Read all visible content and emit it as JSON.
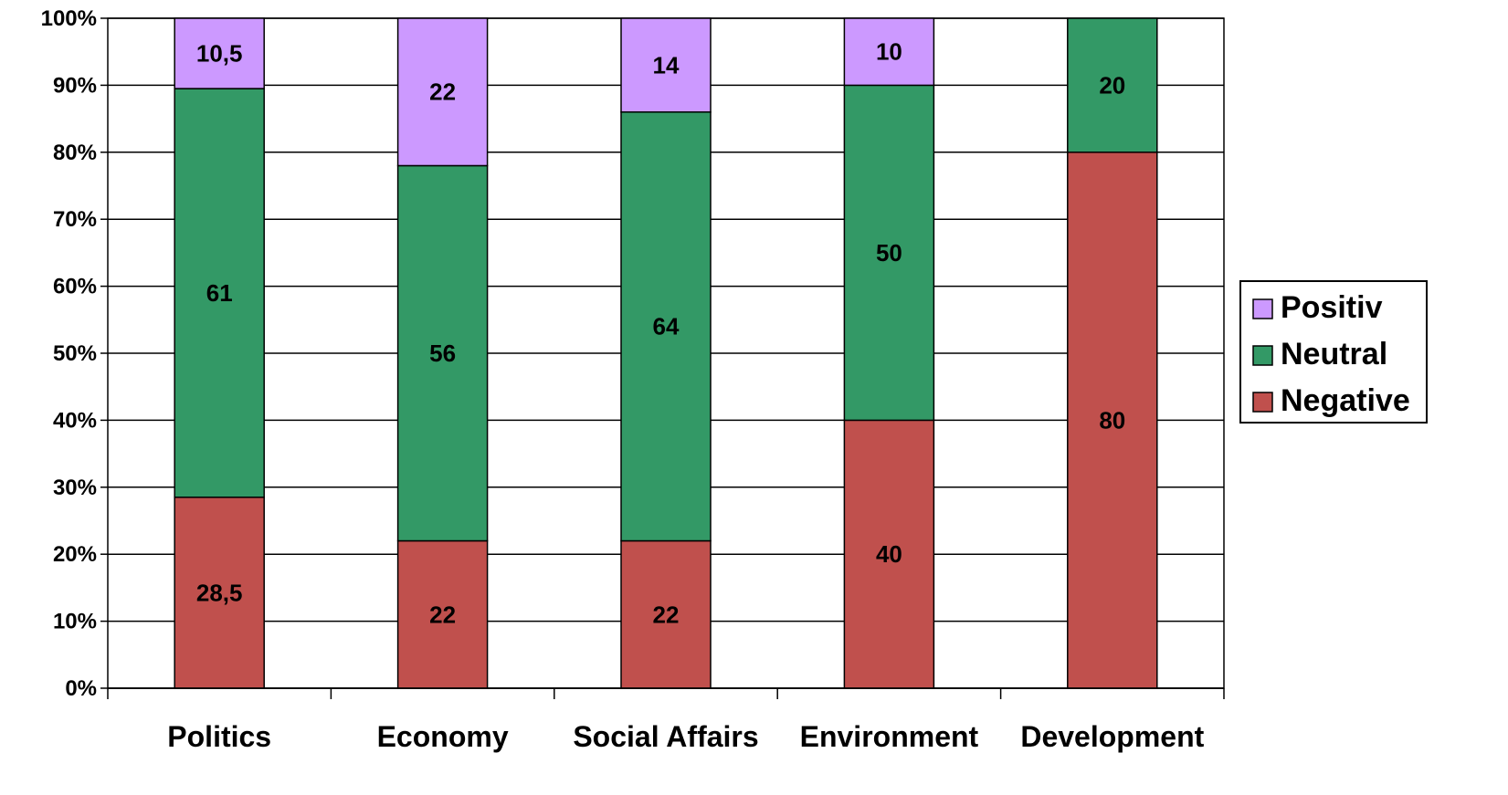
{
  "chart_data": {
    "type": "bar",
    "stacked": true,
    "percent": true,
    "categories": [
      "Politics",
      "Economy",
      "Social Affairs",
      "Environment",
      "Development"
    ],
    "series": [
      {
        "name": "Negative",
        "color": "#C0504D",
        "values": [
          28.5,
          22,
          22,
          40,
          80
        ],
        "labels": [
          "28,5",
          "22",
          "22",
          "40",
          "80"
        ]
      },
      {
        "name": "Neutral",
        "color": "#339966",
        "values": [
          61,
          56,
          64,
          50,
          20
        ],
        "labels": [
          "61",
          "56",
          "64",
          "50",
          "20"
        ]
      },
      {
        "name": "Positiv",
        "color": "#CC99FF",
        "values": [
          10.5,
          22,
          14,
          10,
          0
        ],
        "labels": [
          "10,5",
          "22",
          "14",
          "10",
          ""
        ]
      }
    ],
    "ylim": [
      0,
      100
    ],
    "yticks": [
      "0%",
      "10%",
      "20%",
      "30%",
      "40%",
      "50%",
      "60%",
      "70%",
      "80%",
      "90%",
      "100%"
    ],
    "grid": true,
    "legend": {
      "placement": "right",
      "order": [
        "Positiv",
        "Neutral",
        "Negative"
      ]
    },
    "title": "",
    "xlabel": "",
    "ylabel": ""
  }
}
